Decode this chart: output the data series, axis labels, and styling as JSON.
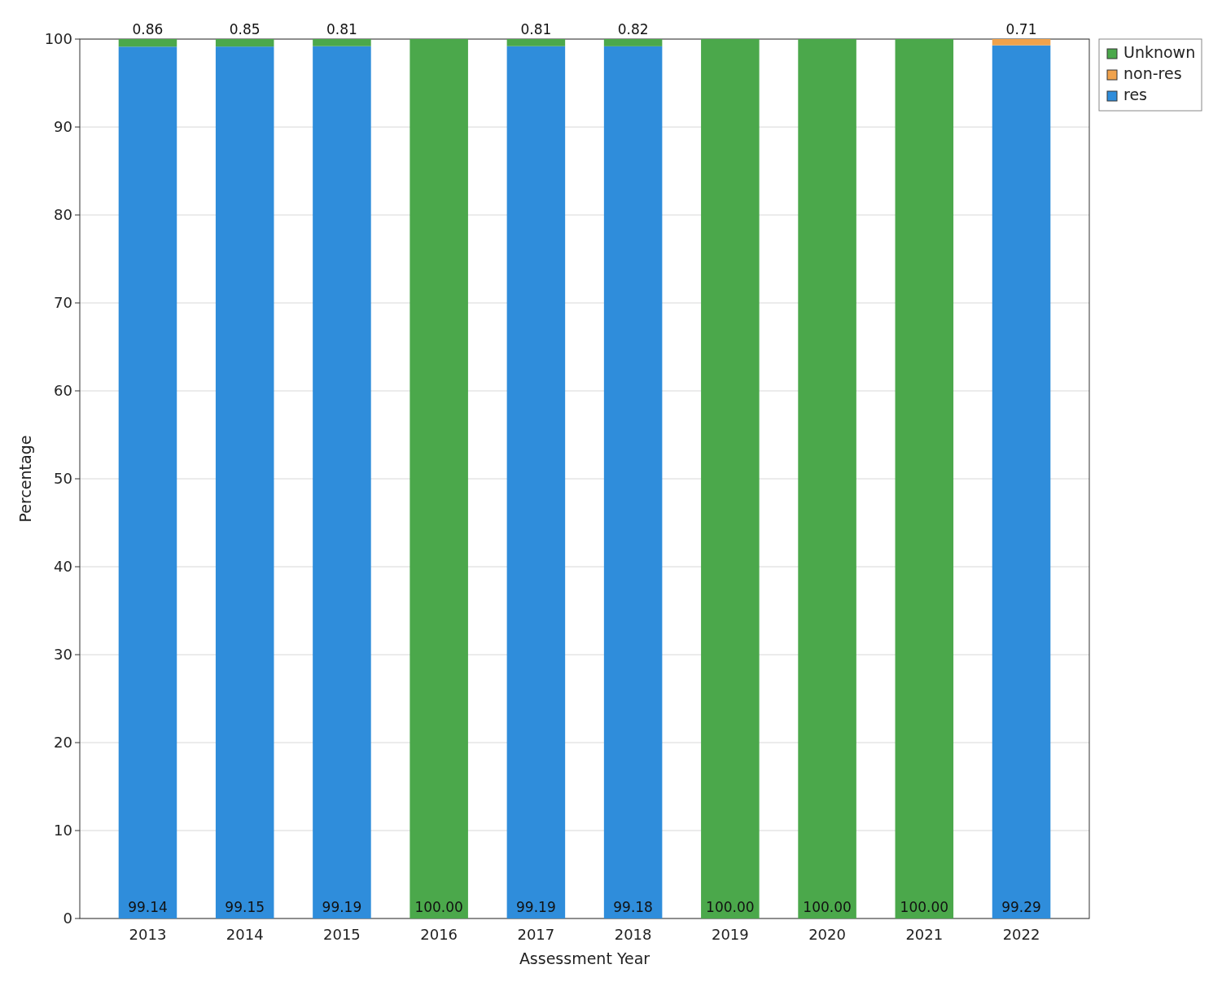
{
  "chart_data": {
    "type": "bar",
    "stacked": true,
    "xlabel": "Assessment Year",
    "ylabel": "Percentage",
    "categories": [
      "2013",
      "2014",
      "2015",
      "2016",
      "2017",
      "2018",
      "2019",
      "2020",
      "2021",
      "2022"
    ],
    "series": [
      {
        "name": "res",
        "color": "#2f8ddb",
        "values": [
          99.14,
          99.15,
          99.19,
          null,
          99.19,
          99.18,
          null,
          null,
          null,
          99.29
        ],
        "value_labels": [
          "99.14",
          "99.15",
          "99.19",
          null,
          "99.19",
          "99.18",
          null,
          null,
          null,
          "99.29"
        ]
      },
      {
        "name": "non-res",
        "color": "#f0a24c",
        "values": [
          null,
          null,
          null,
          null,
          null,
          null,
          null,
          null,
          null,
          0.71
        ],
        "value_labels": [
          null,
          null,
          null,
          null,
          null,
          null,
          null,
          null,
          null,
          "0.71"
        ]
      },
      {
        "name": "Unknown",
        "color": "#4ba84b",
        "values": [
          0.86,
          0.85,
          0.81,
          100,
          0.81,
          0.82,
          100,
          100,
          100,
          null
        ],
        "value_labels": [
          "0.86",
          "0.85",
          "0.81",
          "100.00",
          "0.81",
          "0.82",
          "100.00",
          "100.00",
          "100.00",
          null
        ]
      }
    ],
    "ylim": [
      0,
      100
    ],
    "yticks": [
      0,
      10,
      20,
      30,
      40,
      50,
      60,
      70,
      80,
      90,
      100
    ],
    "grid": "y",
    "legend": "top right"
  }
}
